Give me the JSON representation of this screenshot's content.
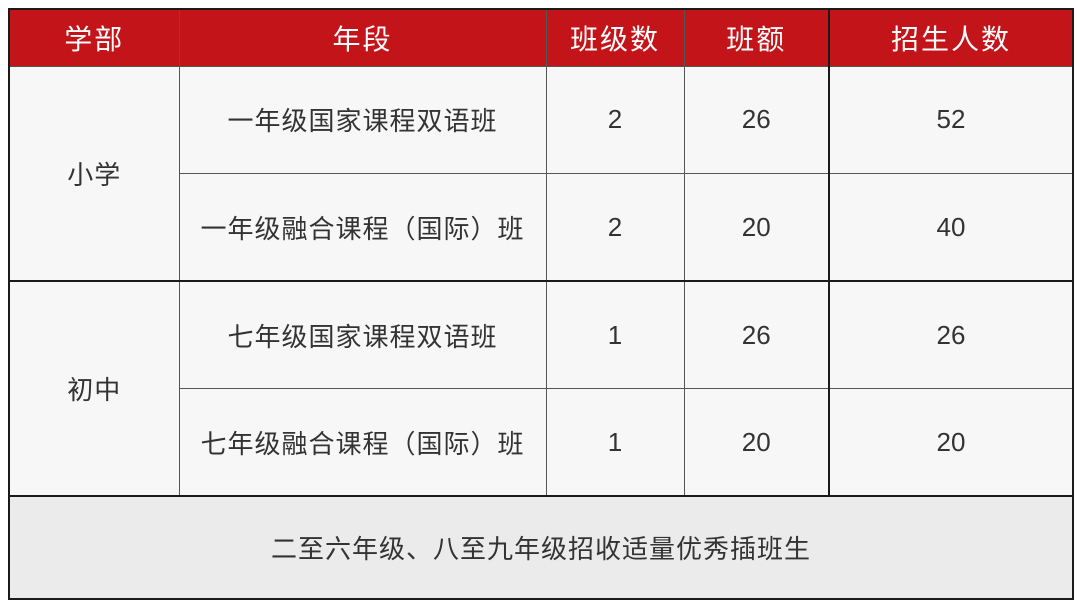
{
  "colors": {
    "header_bg": "#c3141a",
    "header_text": "#fdfdfd",
    "body_bg": "#f7f7f8",
    "footer_bg": "#ebebec",
    "border_dark": "#1a1a1a",
    "border_light": "#555555",
    "body_text": "#333333"
  },
  "chart_data": {
    "type": "table",
    "columns": [
      "学部",
      "年段",
      "班级数",
      "班额",
      "招生人数"
    ],
    "rows": [
      [
        "小学",
        "一年级国家课程双语班",
        2,
        26,
        52
      ],
      [
        "小学",
        "一年级融合课程（国际）班",
        2,
        20,
        40
      ],
      [
        "初中",
        "七年级国家课程双语班",
        1,
        26,
        26
      ],
      [
        "初中",
        "七年级融合课程（国际）班",
        1,
        20,
        20
      ]
    ],
    "footnote": "二至六年级、八至九年级招收适量优秀插班生"
  },
  "table": {
    "headers": {
      "department": "学部",
      "grade": "年段",
      "num_classes": "班级数",
      "class_size": "班额",
      "enrollment": "招生人数"
    },
    "sections": [
      {
        "department": "小学",
        "rows": [
          {
            "grade": "一年级国家课程双语班",
            "num_classes": "2",
            "class_size": "26",
            "enrollment": "52"
          },
          {
            "grade": "一年级融合课程（国际）班",
            "num_classes": "2",
            "class_size": "20",
            "enrollment": "40"
          }
        ]
      },
      {
        "department": "初中",
        "rows": [
          {
            "grade": "七年级国家课程双语班",
            "num_classes": "1",
            "class_size": "26",
            "enrollment": "26"
          },
          {
            "grade": "七年级融合课程（国际）班",
            "num_classes": "1",
            "class_size": "20",
            "enrollment": "20"
          }
        ]
      }
    ],
    "footnote": "二至六年级、八至九年级招收适量优秀插班生"
  }
}
